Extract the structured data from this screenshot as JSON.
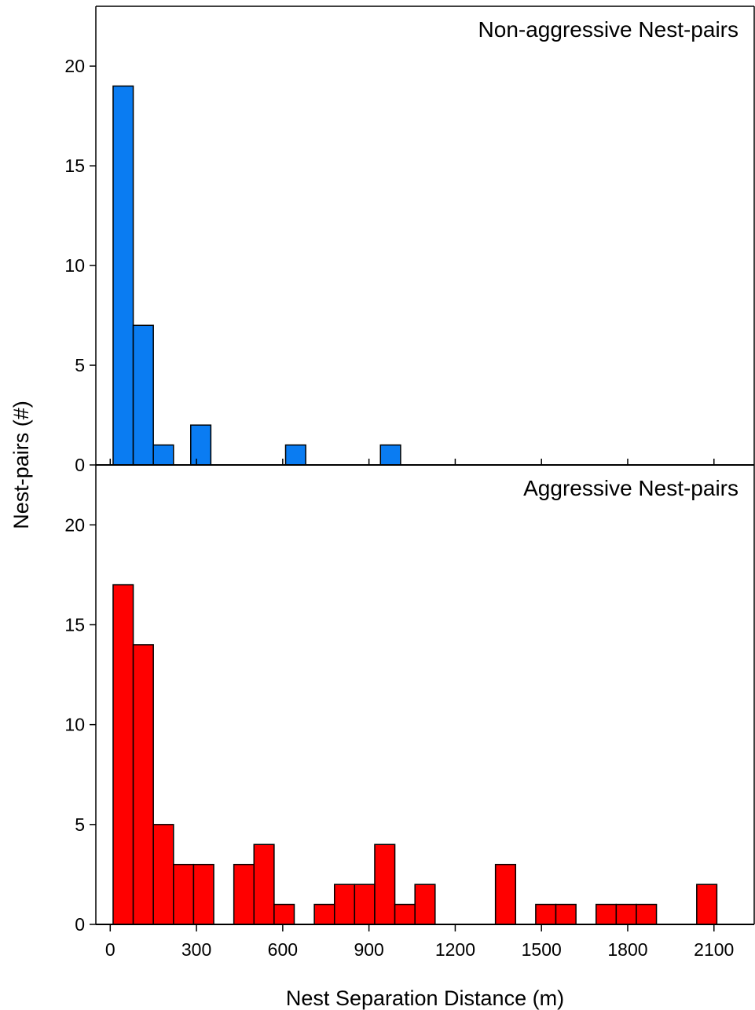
{
  "chart_data": [
    {
      "type": "bar",
      "title": "Non-aggressive Nest-pairs",
      "ylabel": "Nest-pairs (#)",
      "xlabel": "Nest Separation Distance (m)",
      "ylim": [
        0,
        23
      ],
      "yticks": [
        0,
        5,
        10,
        15,
        20
      ],
      "xlim": [
        -50,
        2240
      ],
      "xticks": [
        0,
        300,
        600,
        900,
        1200,
        1500,
        1800,
        2100
      ],
      "bin_width": 70,
      "color": "#0a7cf2",
      "bins": [
        {
          "x0": 10,
          "x1": 80,
          "value": 19
        },
        {
          "x0": 80,
          "x1": 150,
          "value": 7
        },
        {
          "x0": 150,
          "x1": 220,
          "value": 1
        },
        {
          "x0": 280,
          "x1": 350,
          "value": 2
        },
        {
          "x0": 610,
          "x1": 680,
          "value": 1
        },
        {
          "x0": 940,
          "x1": 1010,
          "value": 1
        }
      ]
    },
    {
      "type": "bar",
      "title": "Aggressive Nest-pairs",
      "ylabel": "Nest-pairs (#)",
      "xlabel": "Nest Separation Distance (m)",
      "ylim": [
        0,
        23
      ],
      "yticks": [
        0,
        5,
        10,
        15,
        20
      ],
      "xlim": [
        -50,
        2240
      ],
      "xticks": [
        0,
        300,
        600,
        900,
        1200,
        1500,
        1800,
        2100
      ],
      "bin_width": 70,
      "color": "#ff0000",
      "bins": [
        {
          "x0": 10,
          "x1": 80,
          "value": 17
        },
        {
          "x0": 80,
          "x1": 150,
          "value": 14
        },
        {
          "x0": 150,
          "x1": 220,
          "value": 5
        },
        {
          "x0": 220,
          "x1": 290,
          "value": 3
        },
        {
          "x0": 290,
          "x1": 360,
          "value": 3
        },
        {
          "x0": 430,
          "x1": 500,
          "value": 3
        },
        {
          "x0": 500,
          "x1": 570,
          "value": 4
        },
        {
          "x0": 570,
          "x1": 640,
          "value": 1
        },
        {
          "x0": 710,
          "x1": 780,
          "value": 1
        },
        {
          "x0": 780,
          "x1": 850,
          "value": 2
        },
        {
          "x0": 850,
          "x1": 920,
          "value": 2
        },
        {
          "x0": 920,
          "x1": 990,
          "value": 4
        },
        {
          "x0": 990,
          "x1": 1060,
          "value": 1
        },
        {
          "x0": 1060,
          "x1": 1130,
          "value": 2
        },
        {
          "x0": 1340,
          "x1": 1410,
          "value": 3
        },
        {
          "x0": 1480,
          "x1": 1550,
          "value": 1
        },
        {
          "x0": 1550,
          "x1": 1620,
          "value": 1
        },
        {
          "x0": 1690,
          "x1": 1760,
          "value": 1
        },
        {
          "x0": 1760,
          "x1": 1830,
          "value": 1
        },
        {
          "x0": 1830,
          "x1": 1900,
          "value": 1
        },
        {
          "x0": 2040,
          "x1": 2110,
          "value": 2
        }
      ]
    }
  ]
}
